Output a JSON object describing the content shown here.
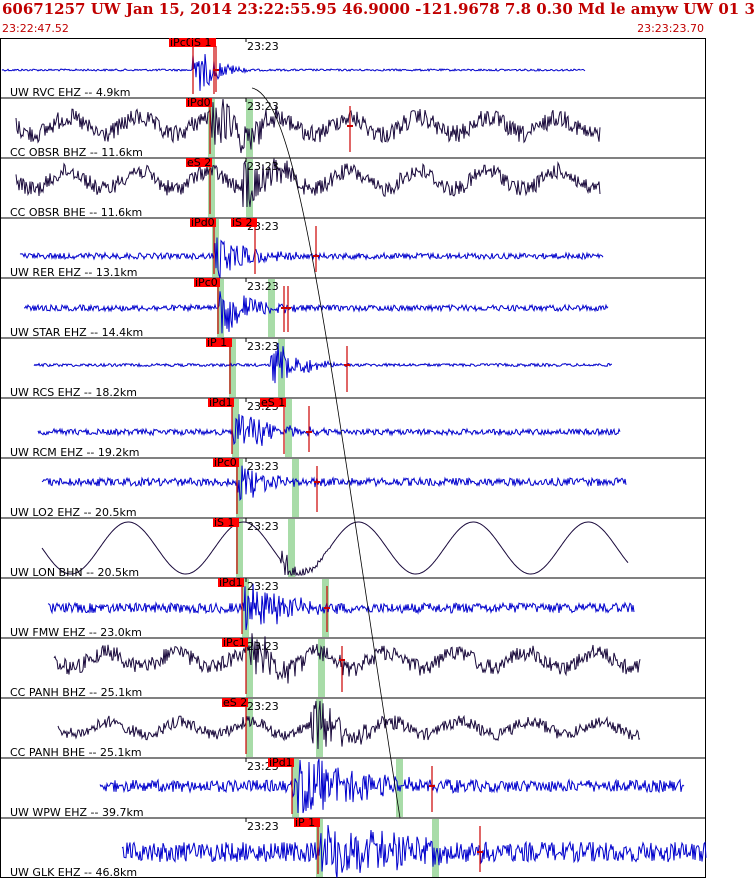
{
  "header": {
    "title": "60671257 UW Jan 15, 2014 23:22:55.95   46.9000 -121.9678  7.8 0.30 Md le amyw UW 01   3",
    "start_time": "23:22:47.52",
    "end_time": "23:23:23.70"
  },
  "tick_label": "23:23",
  "colors": {
    "blue_trace": "#0000cc",
    "dark_trace": "#1a0a3c",
    "pick_box": "#ff0000",
    "pick_line": "#cc0000",
    "window_shade": "#a8dca8",
    "grid": "#000000",
    "title": "#c00000"
  },
  "channels": [
    {
      "label": "UW RVC EHZ -- 4.9km",
      "type": "blue",
      "picks": [
        {
          "text": "iPc0"
        },
        {
          "text": "iS 1"
        }
      ]
    },
    {
      "label": "CC OBSR BHZ -- 11.6km",
      "type": "dark",
      "picks": [
        {
          "text": "iPd0"
        }
      ]
    },
    {
      "label": "CC OBSR BHE -- 11.6km",
      "type": "dark",
      "picks": [
        {
          "text": "eS 2"
        }
      ]
    },
    {
      "label": "UW RER EHZ -- 13.1km",
      "type": "blue",
      "picks": [
        {
          "text": "iPd0"
        },
        {
          "text": "iS 2"
        }
      ]
    },
    {
      "label": "UW STAR EHZ -- 14.4km",
      "type": "blue",
      "picks": [
        {
          "text": "iPc0"
        }
      ]
    },
    {
      "label": "UW RCS EHZ -- 18.2km",
      "type": "blue",
      "picks": [
        {
          "text": "iP 1"
        }
      ]
    },
    {
      "label": "UW RCM EHZ -- 19.2km",
      "type": "blue",
      "picks": [
        {
          "text": "iPd1"
        },
        {
          "text": "eS 1"
        }
      ]
    },
    {
      "label": "UW LO2 EHZ -- 20.5km",
      "type": "blue",
      "picks": [
        {
          "text": "iPc0"
        }
      ]
    },
    {
      "label": "UW LON BHN -- 20.5km",
      "type": "dark",
      "picks": [
        {
          "text": "iS 1"
        }
      ]
    },
    {
      "label": "UW FMW EHZ -- 23.0km",
      "type": "blue",
      "picks": [
        {
          "text": "iPd1"
        }
      ]
    },
    {
      "label": "CC PANH BHZ -- 25.1km",
      "type": "dark",
      "picks": [
        {
          "text": "iPc1"
        }
      ]
    },
    {
      "label": "CC PANH BHE -- 25.1km",
      "type": "dark",
      "picks": [
        {
          "text": "eS 2"
        }
      ]
    },
    {
      "label": "UW WPW EHZ -- 39.7km",
      "type": "blue",
      "picks": [
        {
          "text": "iPd1"
        }
      ]
    },
    {
      "label": "UW GLK EHZ -- 46.8km",
      "type": "blue",
      "picks": [
        {
          "text": "iP 1"
        }
      ]
    }
  ]
}
